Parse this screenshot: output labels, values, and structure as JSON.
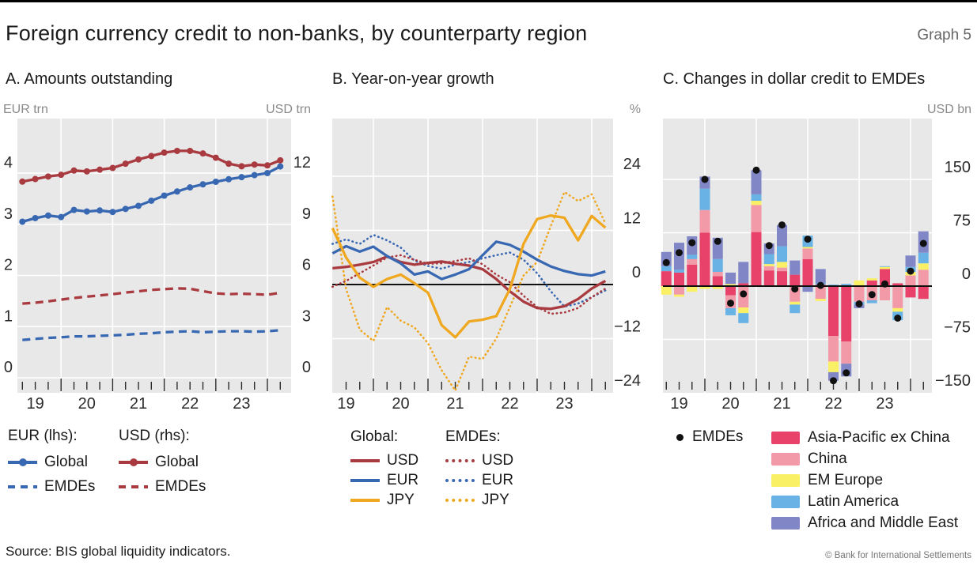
{
  "header": {
    "title": "Foreign currency credit to non-banks, by counterparty region",
    "graph_label": "Graph 5"
  },
  "footer": {
    "source": "Source: BIS global liquidity indicators.",
    "copyright": "© Bank for International Settlements"
  },
  "colors": {
    "accent_red": "#a83a40",
    "accent_blue": "#3968b2",
    "accent_yellow": "#efa81f",
    "bar_asia_pacific_ex_china": "#e8426a",
    "bar_china": "#f39aa9",
    "bar_em_europe": "#faf066",
    "bar_latin_america": "#68b2e6",
    "bar_africa_middle_east": "#8187c6",
    "emde_dot": "#111111",
    "plot_background": "#e8e8e8",
    "gridline": "#ffffff",
    "axis_text": "#2b2b2b",
    "muted_text": "#8a8a8a"
  },
  "panels": {
    "a": {
      "legend": {
        "col1_header": "EUR (lhs):",
        "col2_header": "USD (rhs):",
        "rows": [
          "Global",
          "EMDEs"
        ]
      }
    },
    "b": {
      "legend": {
        "col1_header": "Global:",
        "col2_header": "EMDEs:",
        "rows": [
          "USD",
          "EUR",
          "JPY"
        ]
      }
    },
    "c": {
      "legend": {
        "dot_label": "EMDEs"
      }
    }
  },
  "chart_data": [
    {
      "type": "line",
      "panel": "A",
      "title": "A. Amounts outstanding",
      "unit_left": "EUR trn",
      "unit_right": "USD trn",
      "categories": [
        "2019Q1",
        "2019Q2",
        "2019Q3",
        "2019Q4",
        "2020Q1",
        "2020Q2",
        "2020Q3",
        "2020Q4",
        "2021Q1",
        "2021Q2",
        "2021Q3",
        "2021Q4",
        "2022Q1",
        "2022Q2",
        "2022Q3",
        "2022Q4",
        "2023Q1",
        "2023Q2",
        "2023Q3",
        "2023Q4",
        "2024Q1"
      ],
      "year_labels": [
        "19",
        "20",
        "21",
        "22",
        "23"
      ],
      "axis_left": {
        "ticks": [
          0,
          1,
          2,
          3,
          4
        ],
        "labels": [
          "0",
          "1",
          "2",
          "3",
          "4"
        ],
        "range_top": 5.05
      },
      "axis_right": {
        "ticks": [
          0,
          3,
          6,
          9,
          12
        ],
        "labels": [
          "0",
          "3",
          "6",
          "9",
          "12"
        ]
      },
      "grid": true,
      "series": [
        {
          "name": "Global EUR",
          "legend": "Global",
          "axis": "lhs",
          "style": "dashed_none",
          "marker": false,
          "color": "#3968b2",
          "values": []
        },
        {
          "name": "EMDEs EUR",
          "legend": "EMDEs",
          "axis": "lhs",
          "style": "dashed",
          "marker": false,
          "color": "#3968b2",
          "values": [
            0.74,
            0.76,
            0.78,
            0.79,
            0.81,
            0.81,
            0.82,
            0.83,
            0.84,
            0.86,
            0.87,
            0.89,
            0.9,
            0.91,
            0.89,
            0.9,
            0.91,
            0.91,
            0.9,
            0.91,
            0.93
          ]
        },
        {
          "name": "EMDEs USD",
          "legend": "EMDEs",
          "axis": "rhs",
          "style": "dashed",
          "marker": false,
          "color": "#a83a40",
          "values": [
            4.35,
            4.4,
            4.48,
            4.58,
            4.68,
            4.76,
            4.83,
            4.9,
            5.0,
            5.07,
            5.15,
            5.2,
            5.24,
            5.22,
            5.08,
            4.95,
            4.9,
            4.93,
            4.9,
            4.87,
            4.98
          ]
        },
        {
          "name": "Global EUR",
          "legend": "Global",
          "axis": "lhs",
          "style": "solid",
          "marker": true,
          "color": "#3968b2",
          "values": [
            3.05,
            3.12,
            3.17,
            3.14,
            3.28,
            3.25,
            3.27,
            3.24,
            3.3,
            3.36,
            3.46,
            3.56,
            3.64,
            3.72,
            3.78,
            3.83,
            3.88,
            3.92,
            3.96,
            4.0,
            4.13
          ]
        },
        {
          "name": "Global USD",
          "legend": "Global",
          "axis": "rhs",
          "style": "solid",
          "marker": true,
          "color": "#a83a40",
          "values": [
            11.5,
            11.65,
            11.8,
            11.9,
            12.15,
            12.1,
            12.2,
            12.3,
            12.55,
            12.8,
            13.0,
            13.2,
            13.3,
            13.3,
            13.15,
            12.9,
            12.55,
            12.4,
            12.5,
            12.45,
            12.75
          ]
        }
      ]
    },
    {
      "type": "line",
      "panel": "B",
      "title": "B. Year-on-year growth",
      "unit_right": "%",
      "categories": [
        "2019Q1",
        "2019Q2",
        "2019Q3",
        "2019Q4",
        "2020Q1",
        "2020Q2",
        "2020Q3",
        "2020Q4",
        "2021Q1",
        "2021Q2",
        "2021Q3",
        "2021Q4",
        "2022Q1",
        "2022Q2",
        "2022Q3",
        "2022Q4",
        "2023Q1",
        "2023Q2",
        "2023Q3",
        "2023Q4",
        "2024Q1"
      ],
      "year_labels": [
        "19",
        "20",
        "21",
        "22",
        "23"
      ],
      "axis_right": {
        "ticks": [
          24,
          12,
          0,
          -12,
          -24
        ],
        "labels": [
          "24",
          "12",
          "0",
          "−12",
          "−24"
        ]
      },
      "zero_line": true,
      "series": [
        {
          "name": "EMDEs EUR",
          "legend": "EUR",
          "style": "dotted",
          "color": "#3968b2",
          "values": [
            9.0,
            10.0,
            9.0,
            11.0,
            9.8,
            8.2,
            5.3,
            4.1,
            3.5,
            4.4,
            5.0,
            5.8,
            6.5,
            7.1,
            5.5,
            2.5,
            -1.5,
            -4.9,
            -4.2,
            -2.8,
            -1.3
          ]
        },
        {
          "name": "EMDEs USD",
          "legend": "USD",
          "style": "dotted",
          "color": "#a83a40",
          "values": [
            -0.5,
            0.8,
            2.5,
            4.2,
            6.0,
            6.5,
            5.5,
            4.6,
            4.7,
            5.2,
            5.8,
            4.5,
            2.2,
            0.5,
            -2.5,
            -5.0,
            -6.5,
            -6.2,
            -5.2,
            -2.8,
            -0.9
          ]
        },
        {
          "name": "EMDEs JPY",
          "legend": "JPY",
          "style": "dotted",
          "color": "#efa81f",
          "values": [
            19.5,
            -1.0,
            -10.0,
            -12.5,
            -5.0,
            -8.0,
            -9.5,
            -13.0,
            -19.0,
            -23.5,
            -16.0,
            -16.5,
            -12.0,
            -5.0,
            2.0,
            5.0,
            13.0,
            20.5,
            18.5,
            20.0,
            13.5
          ]
        },
        {
          "name": "Global USD",
          "legend": "USD",
          "style": "solid",
          "color": "#a83a40",
          "values": [
            3.6,
            3.9,
            4.4,
            5.0,
            6.2,
            5.0,
            4.4,
            4.8,
            5.1,
            4.6,
            4.2,
            3.4,
            1.2,
            -1.5,
            -3.8,
            -5.2,
            -5.4,
            -4.8,
            -3.2,
            -0.9,
            0.8
          ]
        },
        {
          "name": "Global EUR",
          "legend": "EUR",
          "style": "solid",
          "color": "#3968b2",
          "values": [
            6.9,
            8.5,
            7.3,
            8.4,
            6.3,
            4.7,
            2.2,
            2.9,
            1.2,
            2.2,
            3.4,
            6.5,
            9.5,
            8.8,
            7.3,
            5.5,
            4.0,
            3.0,
            2.3,
            2.0,
            2.9
          ]
        },
        {
          "name": "Global JPY",
          "legend": "JPY",
          "style": "solid",
          "color": "#efa81f",
          "values": [
            12.5,
            6.0,
            1.5,
            -0.5,
            1.2,
            2.2,
            0.3,
            -1.8,
            -9.0,
            -11.7,
            -8.2,
            -7.8,
            -7.0,
            -1.0,
            9.0,
            14.5,
            15.3,
            14.8,
            9.8,
            15.2,
            12.6
          ]
        }
      ]
    },
    {
      "type": "bar",
      "panel": "C",
      "title": "C. Changes in dollar credit to EMDEs",
      "unit_right": "USD bn",
      "categories": [
        "2019Q1",
        "2019Q2",
        "2019Q3",
        "2019Q4",
        "2020Q1",
        "2020Q2",
        "2020Q3",
        "2020Q4",
        "2021Q1",
        "2021Q2",
        "2021Q3",
        "2021Q4",
        "2022Q1",
        "2022Q2",
        "2022Q3",
        "2022Q4",
        "2023Q1",
        "2023Q2",
        "2023Q3",
        "2023Q4",
        "2024Q1"
      ],
      "year_labels": [
        "19",
        "20",
        "21",
        "22",
        "23"
      ],
      "axis_right": {
        "ticks": [
          150,
          75,
          0,
          -75,
          -150
        ],
        "labels": [
          "150",
          "75",
          "0",
          "−75",
          "−150"
        ]
      },
      "zero_line": true,
      "regions": [
        {
          "name": "Asia-Pacific ex China",
          "color": "#e8426a",
          "values": [
            21,
            19,
            30,
            75,
            14,
            -13,
            4,
            76,
            22,
            21,
            16,
            38,
            2,
            -70,
            -78,
            0,
            8,
            24,
            4,
            -16,
            -18
          ]
        },
        {
          "name": "China",
          "color": "#f39aa9",
          "values": [
            0,
            -12,
            8,
            32,
            6,
            -18,
            -30,
            38,
            6,
            5,
            -22,
            15,
            -18,
            -36,
            -31,
            -22,
            -20,
            -20,
            -31,
            15,
            23
          ]
        },
        {
          "name": "EM Europe",
          "color": "#faf066",
          "values": [
            -12,
            -3,
            -8,
            -4,
            -4,
            3,
            -8,
            6,
            3,
            8,
            -4,
            2,
            -3,
            -15,
            0,
            8,
            3,
            3,
            -5,
            5,
            9
          ]
        },
        {
          "name": "Latin America",
          "color": "#68b2e6",
          "values": [
            7,
            4,
            6,
            30,
            18,
            -10,
            -14,
            9,
            14,
            22,
            -12,
            16,
            2,
            2,
            3,
            -4,
            -4,
            1,
            -12,
            7,
            15
          ]
        },
        {
          "name": "Africa and Middle East",
          "color": "#8187c6",
          "values": [
            20,
            38,
            26,
            17,
            30,
            16,
            30,
            34,
            15,
            30,
            20,
            -8,
            20,
            -12,
            -18,
            -5,
            0,
            0,
            0,
            16,
            30
          ]
        }
      ],
      "dot_series": {
        "name": "EMDEs",
        "color": "#111111",
        "values": [
          33,
          47,
          61,
          150,
          63,
          -24,
          -11,
          163,
          57,
          86,
          -4,
          66,
          1,
          -133,
          -122,
          -25,
          -12,
          3,
          -45,
          21,
          60
        ]
      }
    }
  ]
}
